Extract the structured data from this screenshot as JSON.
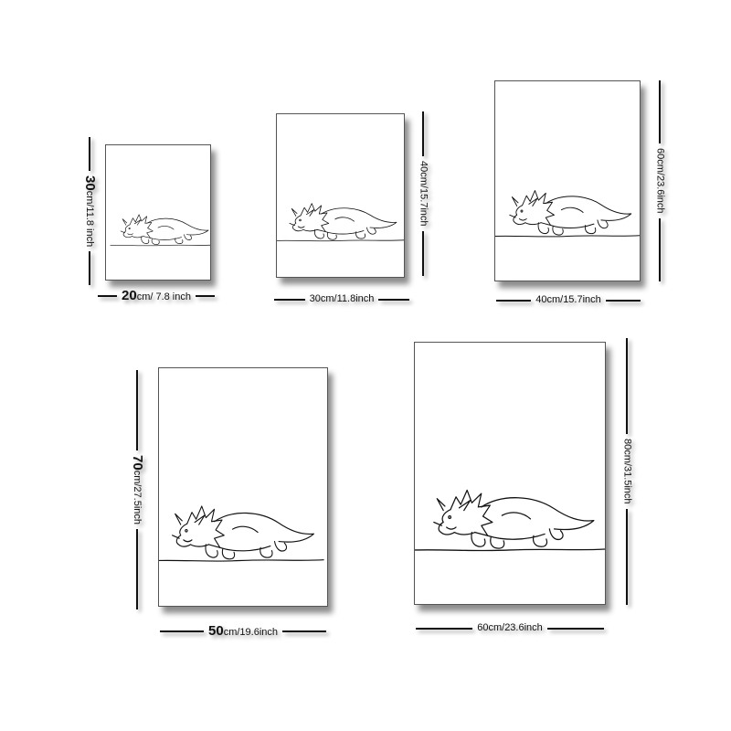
{
  "sizes": [
    {
      "width_num": "20",
      "width_unit": "cm/ 7.8 inch",
      "height_num": "30",
      "height_unit": "cm/11.8 inch"
    },
    {
      "width_label": "30cm/11.8inch",
      "height_label": "40cm/15.7inch"
    },
    {
      "width_label": "40cm/15.7inch",
      "height_label": "60cm/23.6inch"
    },
    {
      "width_num": "50",
      "width_unit": "cm/19.6inch",
      "height_num": "70",
      "height_unit": "cm/27.5inch"
    },
    {
      "width_label": "60cm/23.6inch",
      "height_label": "80cm/31.5inch"
    }
  ],
  "artwork": "one-line triceratops drawing",
  "colors": {
    "line": "#111111",
    "background": "#ffffff"
  }
}
